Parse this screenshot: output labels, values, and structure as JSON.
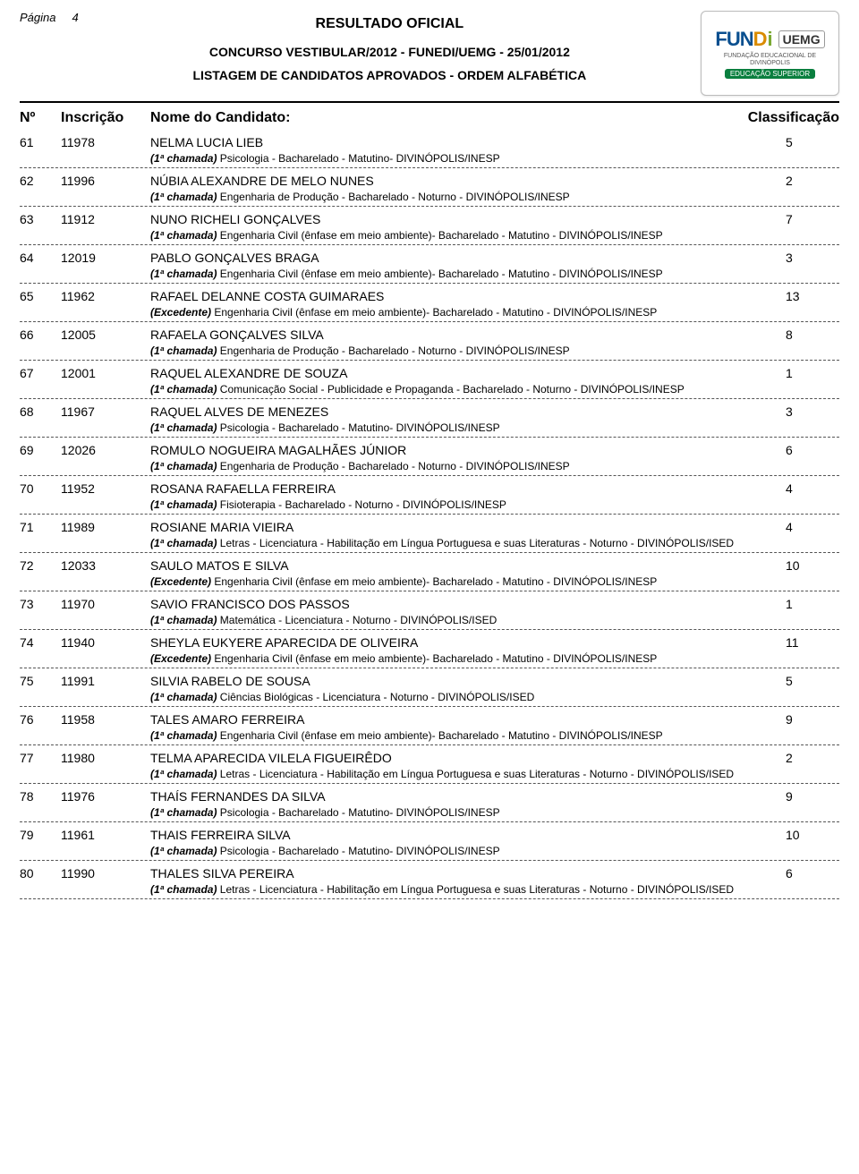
{
  "page_label": "Página",
  "page_number": "4",
  "header": {
    "title": "RESULTADO OFICIAL",
    "line1": "CONCURSO VESTIBULAR/2012 - FUNEDI/UEMG - 25/01/2012",
    "line2": "LISTAGEM DE CANDIDATOS APROVADOS - ORDEM ALFABÉTICA"
  },
  "logo": {
    "t1": "FUN",
    "t2": "D",
    "t3": "i",
    "uemg": "UEMG",
    "small": "FUNDAÇÃO EDUCACIONAL DE DIVINÓPOLIS",
    "badge": "EDUCAÇÃO SUPERIOR"
  },
  "columns": {
    "no": "Nº",
    "inscricao": "Inscrição",
    "nome": "Nome do Candidato:",
    "class": "Classificação"
  },
  "candidates": [
    {
      "no": "61",
      "insc": "11978",
      "name": "NELMA LUCIA LIEB",
      "class": "5",
      "status": "(1ª chamada)",
      "course": "Psicologia - Bacharelado - Matutino- DIVINÓPOLIS/INESP"
    },
    {
      "no": "62",
      "insc": "11996",
      "name": "NÚBIA ALEXANDRE DE MELO NUNES",
      "class": "2",
      "status": "(1ª chamada)",
      "course": "Engenharia de Produção - Bacharelado - Noturno - DIVINÓPOLIS/INESP"
    },
    {
      "no": "63",
      "insc": "11912",
      "name": "NUNO RICHELI GONÇALVES",
      "class": "7",
      "status": "(1ª chamada)",
      "course": "Engenharia Civil (ênfase em meio ambiente)- Bacharelado - Matutino - DIVINÓPOLIS/INESP"
    },
    {
      "no": "64",
      "insc": "12019",
      "name": "PABLO GONÇALVES BRAGA",
      "class": "3",
      "status": "(1ª chamada)",
      "course": "Engenharia Civil (ênfase em meio ambiente)- Bacharelado - Matutino - DIVINÓPOLIS/INESP"
    },
    {
      "no": "65",
      "insc": "11962",
      "name": "RAFAEL DELANNE COSTA GUIMARAES",
      "class": "13",
      "status": "(Excedente)",
      "course": "Engenharia Civil (ênfase em meio ambiente)- Bacharelado - Matutino - DIVINÓPOLIS/INESP"
    },
    {
      "no": "66",
      "insc": "12005",
      "name": "RAFAELA GONÇALVES SILVA",
      "class": "8",
      "status": "(1ª chamada)",
      "course": "Engenharia de Produção - Bacharelado - Noturno - DIVINÓPOLIS/INESP"
    },
    {
      "no": "67",
      "insc": "12001",
      "name": "RAQUEL ALEXANDRE DE SOUZA",
      "class": "1",
      "status": "(1ª chamada)",
      "course": "Comunicação Social - Publicidade e Propaganda - Bacharelado - Noturno - DIVINÓPOLIS/INESP"
    },
    {
      "no": "68",
      "insc": "11967",
      "name": "RAQUEL ALVES DE MENEZES",
      "class": "3",
      "status": "(1ª chamada)",
      "course": "Psicologia - Bacharelado - Matutino- DIVINÓPOLIS/INESP"
    },
    {
      "no": "69",
      "insc": "12026",
      "name": "ROMULO NOGUEIRA MAGALHÃES JÚNIOR",
      "class": "6",
      "status": "(1ª chamada)",
      "course": "Engenharia de Produção - Bacharelado - Noturno - DIVINÓPOLIS/INESP"
    },
    {
      "no": "70",
      "insc": "11952",
      "name": "ROSANA RAFAELLA FERREIRA",
      "class": "4",
      "status": "(1ª chamada)",
      "course": "Fisioterapia - Bacharelado - Noturno - DIVINÓPOLIS/INESP"
    },
    {
      "no": "71",
      "insc": "11989",
      "name": "ROSIANE MARIA VIEIRA",
      "class": "4",
      "status": "(1ª chamada)",
      "course": "Letras - Licenciatura - Habilitação em Língua Portuguesa e suas Literaturas - Noturno - DIVINÓPOLIS/ISED"
    },
    {
      "no": "72",
      "insc": "12033",
      "name": "SAULO MATOS E SILVA",
      "class": "10",
      "status": "(Excedente)",
      "course": "Engenharia Civil (ênfase em meio ambiente)- Bacharelado - Matutino - DIVINÓPOLIS/INESP"
    },
    {
      "no": "73",
      "insc": "11970",
      "name": "SAVIO FRANCISCO DOS PASSOS",
      "class": "1",
      "status": "(1ª chamada)",
      "course": "Matemática - Licenciatura - Noturno - DIVINÓPOLIS/ISED"
    },
    {
      "no": "74",
      "insc": "11940",
      "name": "SHEYLA EUKYERE APARECIDA DE OLIVEIRA",
      "class": "11",
      "status": "(Excedente)",
      "course": "Engenharia Civil (ênfase em meio ambiente)- Bacharelado - Matutino - DIVINÓPOLIS/INESP"
    },
    {
      "no": "75",
      "insc": "11991",
      "name": "SILVIA RABELO DE SOUSA",
      "class": "5",
      "status": "(1ª chamada)",
      "course": "Ciências Biológicas - Licenciatura - Noturno - DIVINÓPOLIS/ISED"
    },
    {
      "no": "76",
      "insc": "11958",
      "name": "TALES AMARO FERREIRA",
      "class": "9",
      "status": "(1ª chamada)",
      "course": "Engenharia Civil (ênfase em meio ambiente)- Bacharelado - Matutino - DIVINÓPOLIS/INESP"
    },
    {
      "no": "77",
      "insc": "11980",
      "name": "TELMA APARECIDA VILELA FIGUEIRÊDO",
      "class": "2",
      "status": "(1ª chamada)",
      "course": "Letras - Licenciatura - Habilitação em Língua Portuguesa e suas Literaturas - Noturno - DIVINÓPOLIS/ISED"
    },
    {
      "no": "78",
      "insc": "11976",
      "name": "THAÍS FERNANDES DA SILVA",
      "class": "9",
      "status": "(1ª chamada)",
      "course": "Psicologia - Bacharelado - Matutino- DIVINÓPOLIS/INESP"
    },
    {
      "no": "79",
      "insc": "11961",
      "name": "THAIS FERREIRA SILVA",
      "class": "10",
      "status": "(1ª chamada)",
      "course": "Psicologia - Bacharelado - Matutino- DIVINÓPOLIS/INESP"
    },
    {
      "no": "80",
      "insc": "11990",
      "name": "THALES SILVA PEREIRA",
      "class": "6",
      "status": "(1ª chamada)",
      "course": "Letras - Licenciatura - Habilitação em Língua Portuguesa e suas Literaturas - Noturno - DIVINÓPOLIS/ISED"
    }
  ]
}
